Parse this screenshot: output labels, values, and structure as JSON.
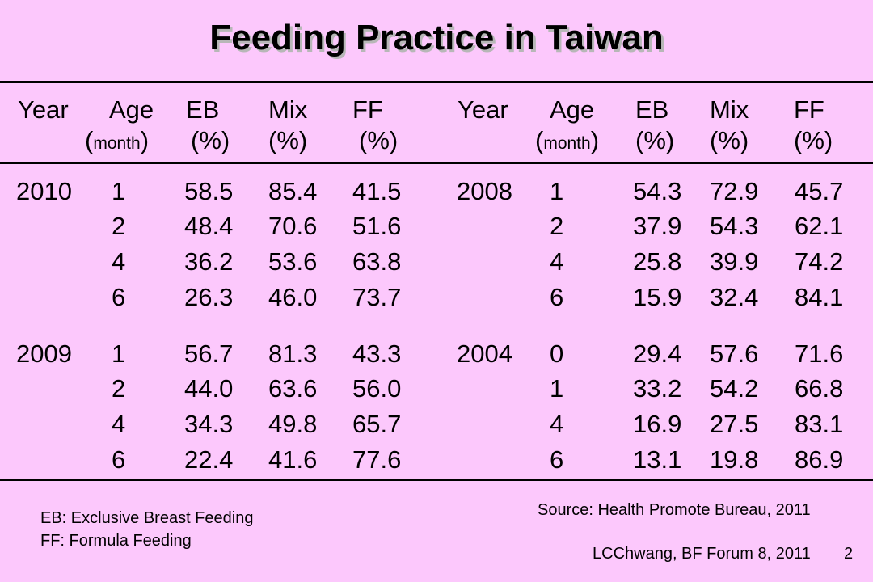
{
  "title": "Feeding Practice in Taiwan",
  "header": {
    "year": "Year",
    "age": "Age",
    "age_unit": "month",
    "eb": "EB",
    "mix": "Mix",
    "ff": "FF",
    "pct": "(%)"
  },
  "rows": [
    {
      "year": "2010",
      "age": "1",
      "eb": "58.5",
      "mix": "85.4",
      "ff": "41.5"
    },
    {
      "year": "",
      "age": "2",
      "eb": "48.4",
      "mix": "70.6",
      "ff": "51.6"
    },
    {
      "year": "",
      "age": "4",
      "eb": "36.2",
      "mix": "53.6",
      "ff": "63.8"
    },
    {
      "year": "",
      "age": "6",
      "eb": "26.3",
      "mix": "46.0",
      "ff": "73.7"
    },
    {
      "year": "2009",
      "age": "1",
      "eb": "56.7",
      "mix": "81.3",
      "ff": "43.3"
    },
    {
      "year": "",
      "age": "2",
      "eb": "44.0",
      "mix": "63.6",
      "ff": "56.0"
    },
    {
      "year": "",
      "age": "4",
      "eb": "34.3",
      "mix": "49.8",
      "ff": "65.7"
    },
    {
      "year": "",
      "age": "6",
      "eb": "22.4",
      "mix": "41.6",
      "ff": "77.6"
    },
    {
      "year": "2008",
      "age": "1",
      "eb": "54.3",
      "mix": "72.9",
      "ff": "45.7"
    },
    {
      "year": "",
      "age": "2",
      "eb": "37.9",
      "mix": "54.3",
      "ff": "62.1"
    },
    {
      "year": "",
      "age": "4",
      "eb": "25.8",
      "mix": "39.9",
      "ff": "74.2"
    },
    {
      "year": "",
      "age": "6",
      "eb": "15.9",
      "mix": "32.4",
      "ff": "84.1"
    },
    {
      "year": "2004",
      "age": "0",
      "eb": "29.4",
      "mix": "57.6",
      "ff": "71.6"
    },
    {
      "year": "",
      "age": "1",
      "eb": "33.2",
      "mix": "54.2",
      "ff": "66.8"
    },
    {
      "year": "",
      "age": "4",
      "eb": "16.9",
      "mix": "27.5",
      "ff": "83.1"
    },
    {
      "year": "",
      "age": "6",
      "eb": "13.1",
      "mix": "19.8",
      "ff": "86.9"
    }
  ],
  "legend": {
    "eb": "EB: Exclusive Breast Feeding",
    "ff": "FF: Formula Feeding"
  },
  "source": "Source: Health Promote Bureau, 2011",
  "footer": {
    "credit": "LCChwang, BF Forum 8, 2011",
    "page": "2"
  }
}
